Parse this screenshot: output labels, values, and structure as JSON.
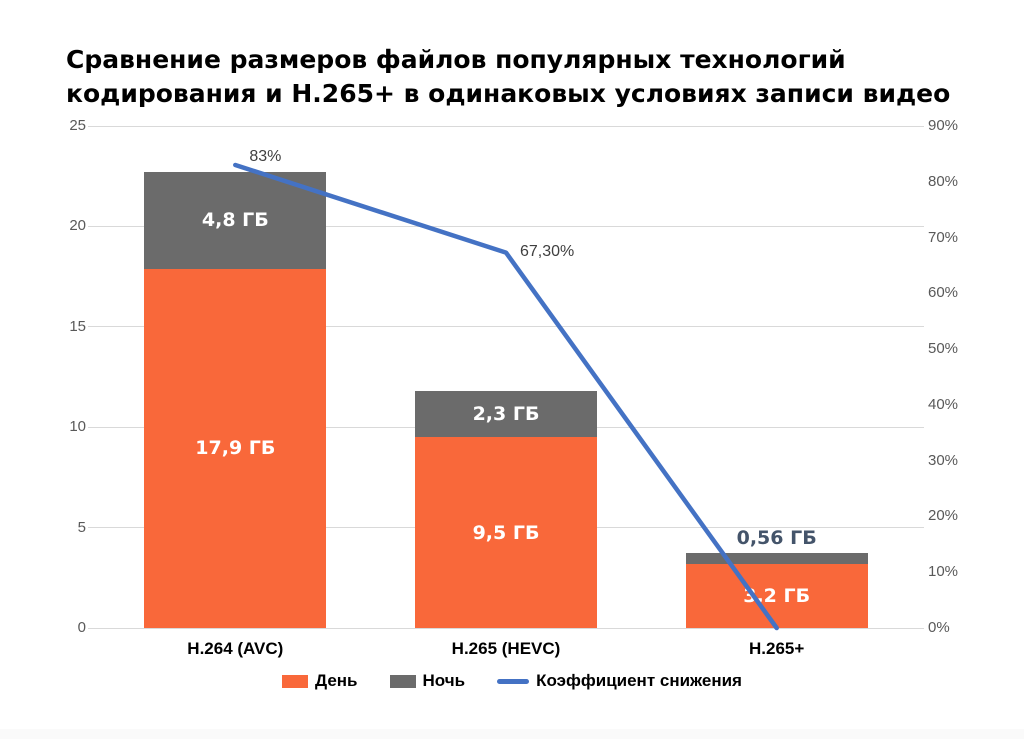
{
  "title": "Сравнение размеров файлов популярных технологий кодирования и H.265+ в одинаковых условиях записи видео",
  "chart_data": {
    "type": "bar",
    "subtype": "stacked-bars-with-line-overlay",
    "categories": [
      "H.264 (AVC)",
      "H.265 (HEVC)",
      "H.265+"
    ],
    "series": [
      {
        "name": "День",
        "type": "bar",
        "color": "#F9683A",
        "values": [
          17.9,
          9.5,
          3.2
        ],
        "labels": [
          "17,9 ГБ",
          "9,5 ГБ",
          "3,2 ГБ"
        ]
      },
      {
        "name": "Ночь",
        "type": "bar",
        "color": "#6B6B6B",
        "values": [
          4.8,
          2.3,
          0.56
        ],
        "labels": [
          "4,8 ГБ",
          "2,3 ГБ",
          "0,56 ГБ"
        ]
      },
      {
        "name": "Коэффициент снижения",
        "type": "line",
        "color": "#4472C4",
        "values": [
          83,
          67.3,
          0
        ],
        "labels": [
          "83%",
          "67,30%",
          ""
        ]
      }
    ],
    "left_axis": {
      "min": 0,
      "max": 25,
      "ticks": [
        0,
        5,
        10,
        15,
        20,
        25
      ]
    },
    "right_axis": {
      "min": 0,
      "max": 90,
      "ticks": [
        0,
        10,
        20,
        30,
        40,
        50,
        60,
        70,
        80,
        90
      ],
      "suffix": "%"
    },
    "legend_position": "bottom",
    "grid": true
  },
  "colors": {
    "grid": "#D9D9D9",
    "axis_text": "#595959",
    "inside_bar_label": "#FFFFFF",
    "outside_bar_label": "#44546A",
    "line_point_label": "#3F3F3F",
    "title_text": "#000000"
  }
}
